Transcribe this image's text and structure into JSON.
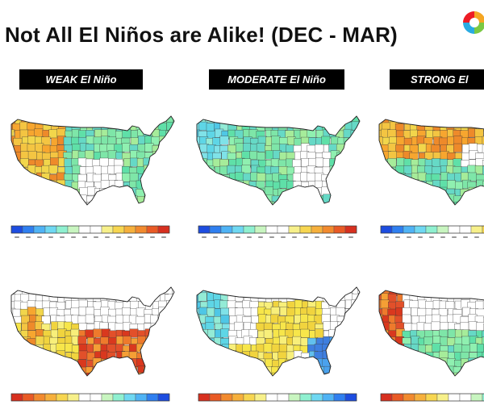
{
  "slide": {
    "title": "Not All El Niños are Alike! (DEC - MAR)"
  },
  "columns": [
    {
      "label": "WEAK  El Niño"
    },
    {
      "label": "MODERATE El Niño"
    },
    {
      "label": "STRONG El"
    }
  ],
  "colors": {
    "background": "#ffffff",
    "label_box": "#000000",
    "dry": "#e8a838",
    "neutral": "#ffffff",
    "wet": "#5fe0a8"
  },
  "colorbar_scale": {
    "top_row": "blue-to-red",
    "bottom_row": "red-to-blue"
  },
  "icons": {
    "logo": "circular-color-logo"
  }
}
